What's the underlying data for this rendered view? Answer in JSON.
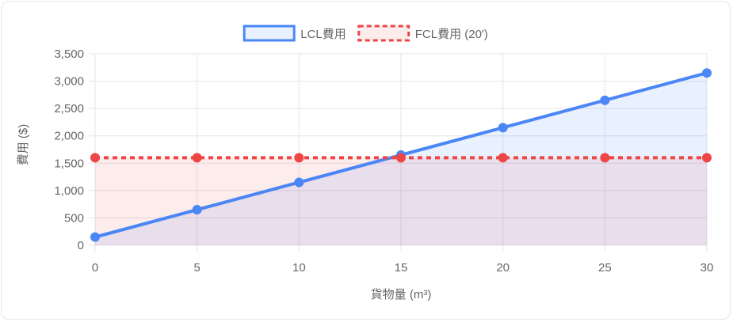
{
  "chart_data": {
    "type": "line",
    "xlabel": "貨物量 (m³)",
    "ylabel": "費用 ($)",
    "x": [
      0,
      5,
      10,
      15,
      20,
      25,
      30
    ],
    "xticks": [
      "0",
      "5",
      "10",
      "15",
      "20",
      "25",
      "30"
    ],
    "yticks": [
      "0",
      "500",
      "1,000",
      "1,500",
      "2,000",
      "2,500",
      "3,000",
      "3,500"
    ],
    "xlim": [
      0,
      30
    ],
    "ylim": [
      0,
      3500
    ],
    "grid": true,
    "legend_position": "top-center",
    "series": [
      {
        "name": "LCL費用",
        "values": [
          150,
          650,
          1150,
          1650,
          2150,
          2650,
          3150
        ],
        "color": "#4a86f5",
        "fill": "rgba(74,134,245,0.12)",
        "dash": false
      },
      {
        "name": "FCL費用 (20')",
        "values": [
          1600,
          1600,
          1600,
          1600,
          1600,
          1600,
          1600
        ],
        "color": "#ef4545",
        "fill": "rgba(239,69,69,0.10)",
        "dash": true
      }
    ]
  }
}
